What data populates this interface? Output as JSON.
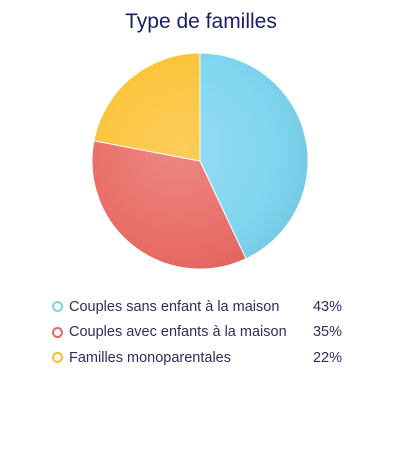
{
  "chart_data": {
    "type": "pie",
    "title": "Type de familles",
    "slices": [
      {
        "label": "Couples sans enfant à la maison",
        "value": 43,
        "display": "43%",
        "color": "#79d3ef"
      },
      {
        "label": "Couples avec enfants à la maison",
        "value": 35,
        "display": "35%",
        "color": "#e8665f"
      },
      {
        "label": "Familles monoparentales",
        "value": 22,
        "display": "22%",
        "color": "#fbc02d"
      }
    ],
    "legend_position": "bottom"
  }
}
